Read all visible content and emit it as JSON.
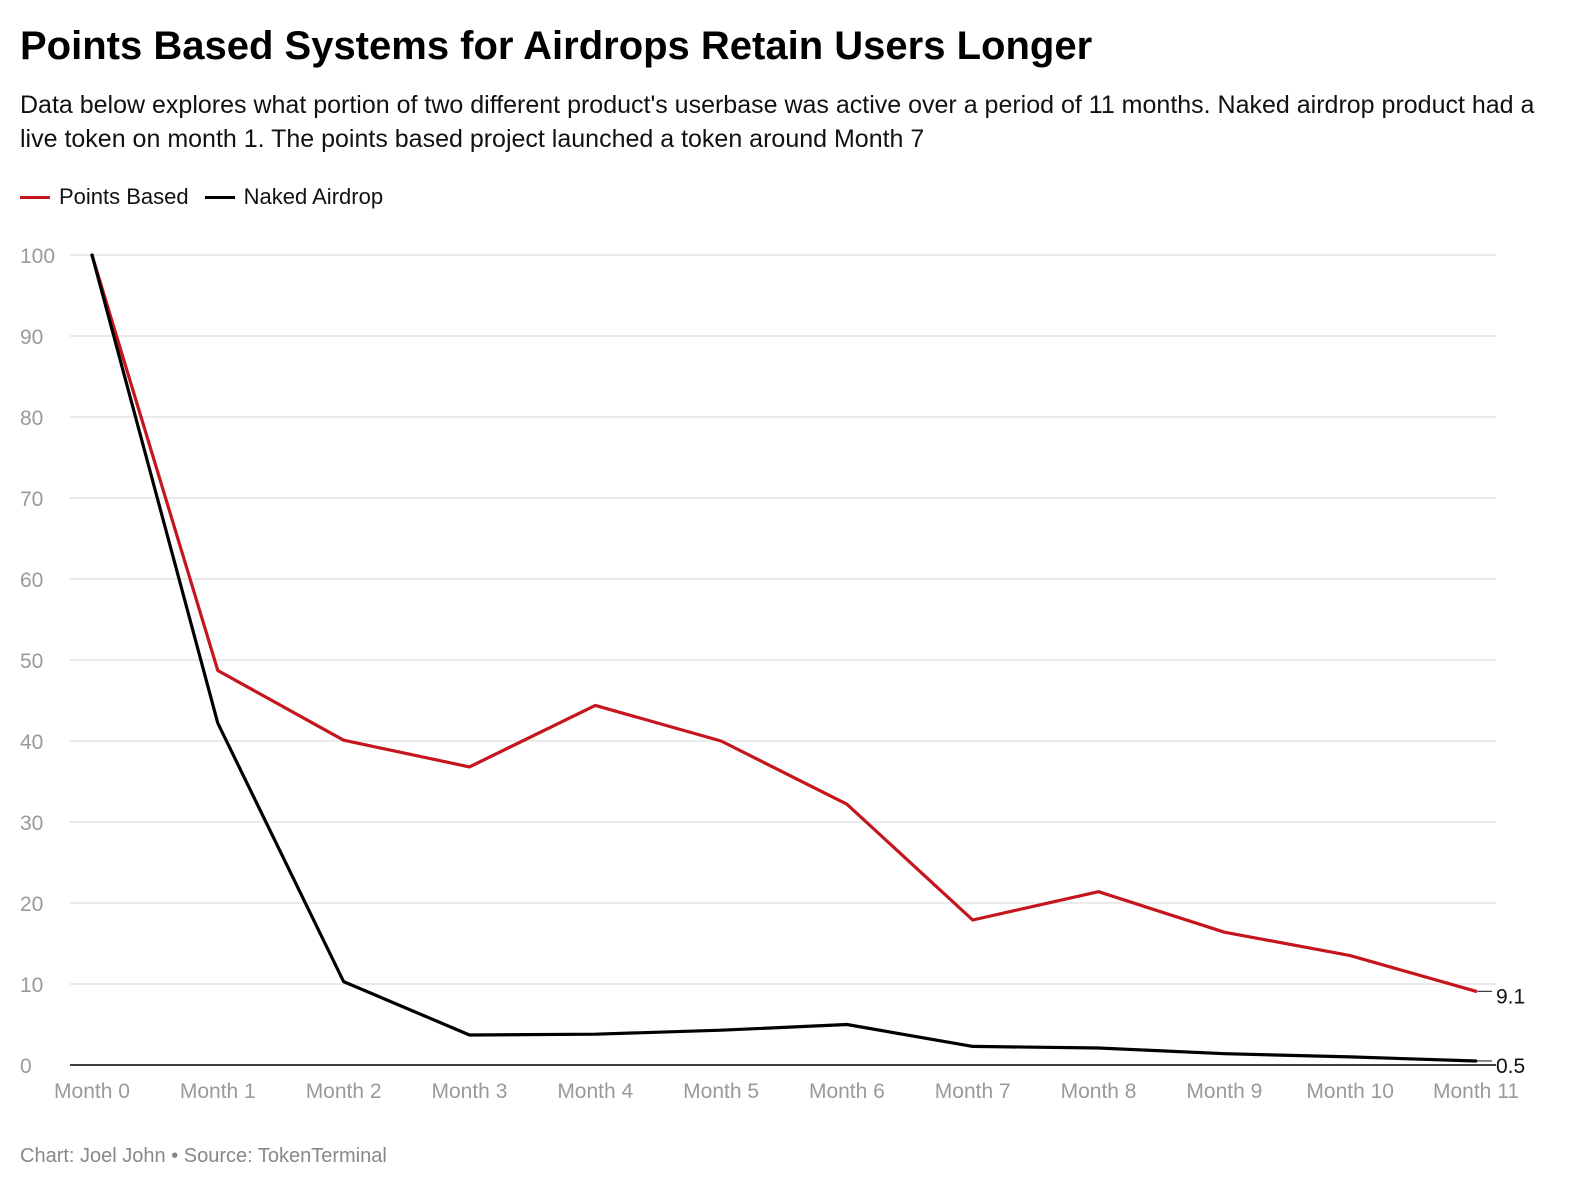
{
  "header": {
    "title": "Points Based Systems for Airdrops Retain Users Longer",
    "subtitle": "Data below explores what portion of two different product's userbase was active over a period of 11 months. Naked airdrop product had a live token on month 1. The points based project launched a token around Month 7"
  },
  "footer": {
    "credit": "Chart: Joel John • Source: TokenTerminal"
  },
  "colors": {
    "points_based": "#c4161c",
    "naked_airdrop": "#000000",
    "grid": "#e3e3e3",
    "tick_text": "#9a9a9a"
  },
  "chart_data": {
    "type": "line",
    "title": "Points Based Systems for Airdrops Retain Users Longer",
    "xlabel": "",
    "ylabel": "",
    "categories": [
      "Month 0",
      "Month 1",
      "Month 2",
      "Month 3",
      "Month 4",
      "Month 5",
      "Month 6",
      "Month 7",
      "Month 8",
      "Month 9",
      "Month 10",
      "Month 11"
    ],
    "ylim": [
      0,
      100
    ],
    "yticks": [
      "0",
      "10",
      "20",
      "30",
      "40",
      "50",
      "60",
      "70",
      "80",
      "90",
      "100"
    ],
    "grid": true,
    "legend_position": "top-left",
    "series": [
      {
        "name": "Points Based",
        "color": "#c4161c",
        "values": [
          100,
          48.7,
          40.1,
          36.8,
          44.4,
          40.0,
          32.2,
          17.9,
          21.4,
          16.4,
          13.5,
          9.1
        ],
        "end_label": "9.1"
      },
      {
        "name": "Naked Airdrop",
        "color": "#000000",
        "values": [
          100,
          42.2,
          10.3,
          3.7,
          3.8,
          4.3,
          5.0,
          2.3,
          2.1,
          1.4,
          1.0,
          0.5
        ],
        "end_label": "0.5"
      }
    ]
  }
}
